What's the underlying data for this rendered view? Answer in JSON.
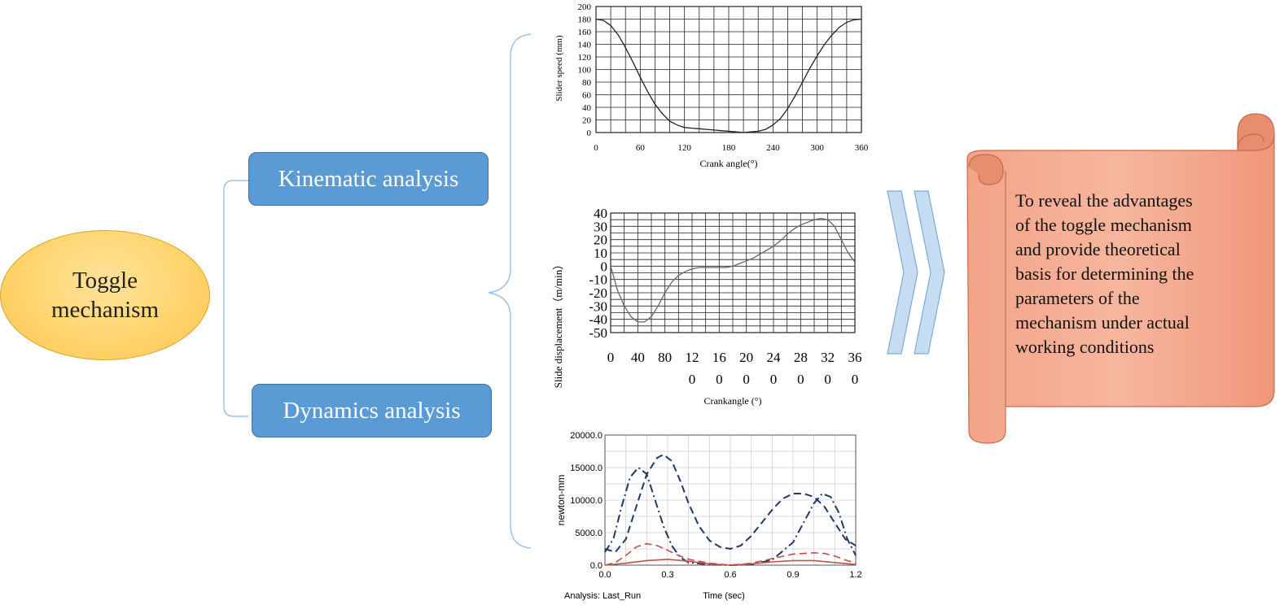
{
  "root": {
    "line1": "Toggle",
    "line2": "mechanism"
  },
  "branches": {
    "kinematic": "Kinematic analysis",
    "dynamics": "Dynamics analysis"
  },
  "conclusion": {
    "lines": [
      "To reveal the advantages",
      "of the toggle mechanism",
      "and provide theoretical",
      "basis for determining  the",
      "parameters of the",
      "mechanism  under actual",
      "working conditions"
    ]
  },
  "colors": {
    "ellipse_fill": "#ffd36a",
    "box_fill": "#5b9bd5",
    "scroll_fill": "#f4a58a",
    "arrow_fill": "#c5dcf2",
    "bracket": "#9dc3e6"
  },
  "chart_data": [
    {
      "type": "line",
      "xlabel": "Crank angle(°)",
      "ylabel": "Slider speed (mm)",
      "xlim": [
        0,
        360
      ],
      "ylim": [
        0,
        200
      ],
      "xticks": [
        "0",
        "60",
        "120",
        "180",
        "240",
        "300",
        "360"
      ],
      "yticks": [
        "0",
        "20",
        "40",
        "60",
        "80",
        "100",
        "120",
        "140",
        "160",
        "180",
        "200"
      ],
      "grid": true,
      "x": [
        0,
        10,
        20,
        30,
        40,
        50,
        60,
        70,
        80,
        90,
        100,
        110,
        120,
        130,
        140,
        150,
        160,
        170,
        180,
        190,
        200,
        210,
        220,
        230,
        240,
        250,
        260,
        270,
        280,
        290,
        300,
        310,
        320,
        330,
        340,
        350,
        360
      ],
      "y": [
        180,
        178,
        170,
        155,
        135,
        112,
        88,
        65,
        45,
        30,
        18,
        12,
        8,
        7,
        6,
        5,
        4,
        3,
        2,
        1,
        0,
        1,
        2,
        5,
        12,
        22,
        38,
        58,
        80,
        102,
        122,
        140,
        155,
        167,
        175,
        179,
        180
      ]
    },
    {
      "type": "line",
      "xlabel": "Crankangle (°)",
      "ylabel": "Slide displacement（m/min）",
      "xlim": [
        0,
        360
      ],
      "ylim": [
        -50,
        40
      ],
      "xticks": [
        [
          "0",
          ""
        ],
        [
          "40",
          ""
        ],
        [
          "80",
          ""
        ],
        [
          "12",
          "0"
        ],
        [
          "16",
          "0"
        ],
        [
          "20",
          "0"
        ],
        [
          "24",
          "0"
        ],
        [
          "28",
          "0"
        ],
        [
          "32",
          "0"
        ],
        [
          "36",
          "0"
        ]
      ],
      "yticks": [
        "-50",
        "-40",
        "-30",
        "-20",
        "-10",
        "0",
        "10",
        "20",
        "30",
        "40"
      ],
      "grid": true,
      "x": [
        0,
        10,
        20,
        30,
        40,
        50,
        60,
        70,
        80,
        90,
        100,
        110,
        120,
        130,
        140,
        150,
        160,
        170,
        180,
        190,
        200,
        210,
        220,
        230,
        240,
        250,
        260,
        270,
        280,
        290,
        300,
        310,
        320,
        330,
        340,
        350,
        360
      ],
      "y": [
        0,
        -18,
        -30,
        -38,
        -42,
        -42,
        -38,
        -30,
        -20,
        -12,
        -7,
        -4,
        -2,
        -1,
        -1,
        -1,
        -1,
        -1,
        0,
        2,
        4,
        6,
        9,
        12,
        15,
        19,
        24,
        28,
        31,
        33,
        35,
        36,
        35,
        30,
        20,
        10,
        3
      ]
    },
    {
      "type": "line",
      "xlabel": "Time (sec)",
      "ylabel": "newton-mm",
      "footer": "Analysis:  Last_Run",
      "xlim": [
        0,
        1.2
      ],
      "ylim": [
        0,
        20000
      ],
      "xticks": [
        "0.0",
        "0.3",
        "0.6",
        "0.9",
        "1.2"
      ],
      "yticks": [
        "0.0",
        "5000.0",
        "10000.0",
        "15000.0",
        "20000.0"
      ],
      "grid": true,
      "series": [
        {
          "color": "#1f3864",
          "dash": "dashdot",
          "x": [
            0,
            0.04,
            0.08,
            0.12,
            0.16,
            0.2,
            0.24,
            0.28,
            0.32,
            0.36,
            0.4,
            0.5,
            0.6,
            0.7,
            0.8,
            0.9,
            0.95,
            1.0,
            1.04,
            1.08,
            1.12,
            1.16,
            1.2
          ],
          "y": [
            2000,
            4000,
            9000,
            13500,
            15000,
            14000,
            10000,
            6000,
            3000,
            1200,
            400,
            100,
            0,
            100,
            800,
            3500,
            6500,
            9500,
            11000,
            10500,
            8000,
            4000,
            1500
          ]
        },
        {
          "color": "#1f3864",
          "dash": "dashed",
          "x": [
            0,
            0.05,
            0.1,
            0.15,
            0.2,
            0.25,
            0.28,
            0.32,
            0.36,
            0.4,
            0.45,
            0.5,
            0.55,
            0.6,
            0.65,
            0.7,
            0.75,
            0.8,
            0.85,
            0.9,
            0.95,
            1.0,
            1.05,
            1.1,
            1.15,
            1.2
          ],
          "y": [
            2500,
            2000,
            4000,
            9000,
            14000,
            16500,
            17000,
            16000,
            13000,
            9500,
            6000,
            3800,
            2800,
            2500,
            3000,
            4500,
            6500,
            8500,
            10200,
            11000,
            11000,
            10500,
            9000,
            6500,
            4000,
            3000
          ]
        },
        {
          "color": "#c0504d",
          "dash": "dashed",
          "x": [
            0,
            0.05,
            0.1,
            0.15,
            0.2,
            0.25,
            0.3,
            0.35,
            0.4,
            0.5,
            0.6,
            0.7,
            0.8,
            0.9,
            1.0,
            1.05,
            1.1,
            1.15,
            1.2
          ],
          "y": [
            0,
            400,
            1500,
            2800,
            3300,
            3000,
            2300,
            1500,
            900,
            300,
            0,
            300,
            1000,
            1700,
            1900,
            1800,
            1400,
            800,
            300
          ]
        },
        {
          "color": "#c0504d",
          "dash": "solid",
          "x": [
            0,
            0.1,
            0.2,
            0.3,
            0.4,
            0.5,
            0.6,
            0.7,
            0.8,
            0.9,
            1.0,
            1.1,
            1.2
          ],
          "y": [
            0,
            300,
            700,
            900,
            600,
            200,
            0,
            200,
            500,
            700,
            700,
            400,
            100
          ]
        }
      ]
    }
  ]
}
